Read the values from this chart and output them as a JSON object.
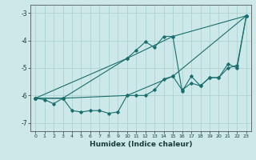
{
  "title": "",
  "xlabel": "Humidex (Indice chaleur)",
  "bg_color": "#cce8e8",
  "grid_color": "#aacece",
  "line_color": "#1a6e6e",
  "xlim": [
    -0.5,
    23.5
  ],
  "ylim": [
    -7.3,
    -2.7
  ],
  "yticks": [
    -7,
    -6,
    -5,
    -4,
    -3
  ],
  "xticks": [
    0,
    1,
    2,
    3,
    4,
    5,
    6,
    7,
    8,
    9,
    10,
    11,
    12,
    13,
    14,
    15,
    16,
    17,
    18,
    19,
    20,
    21,
    22,
    23
  ],
  "series": [
    {
      "x": [
        0,
        1,
        2,
        3,
        4,
        5,
        6,
        7,
        8,
        9,
        10,
        11,
        12,
        13,
        14,
        15,
        16,
        17,
        18,
        19,
        20,
        21,
        22,
        23
      ],
      "y": [
        -6.1,
        -6.15,
        -6.3,
        -6.1,
        -6.55,
        -6.6,
        -6.55,
        -6.55,
        -6.65,
        -6.6,
        -6.0,
        -6.0,
        -6.0,
        -5.8,
        -5.4,
        -5.3,
        -5.8,
        -5.55,
        -5.65,
        -5.35,
        -5.35,
        -5.0,
        -4.9,
        -3.1
      ]
    },
    {
      "x": [
        0,
        3,
        10,
        15,
        23
      ],
      "y": [
        -6.1,
        -6.1,
        -6.0,
        -5.3,
        -3.1
      ]
    },
    {
      "x": [
        0,
        3,
        10,
        15,
        23
      ],
      "y": [
        -6.1,
        -6.1,
        -4.65,
        -3.85,
        -3.1
      ]
    },
    {
      "x": [
        0,
        10,
        11,
        12,
        13,
        14,
        15,
        16,
        17,
        18,
        19,
        20,
        21,
        22,
        23
      ],
      "y": [
        -6.1,
        -4.65,
        -4.35,
        -4.05,
        -4.25,
        -3.85,
        -3.85,
        -5.85,
        -5.3,
        -5.65,
        -5.35,
        -5.35,
        -4.85,
        -5.0,
        -3.1
      ]
    }
  ]
}
